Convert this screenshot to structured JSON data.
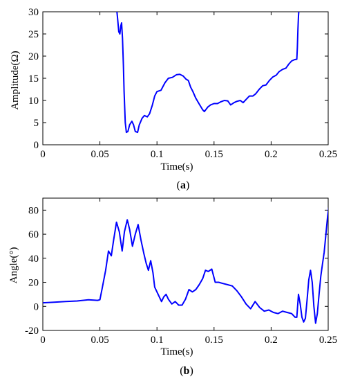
{
  "chart_data": [
    {
      "type": "line",
      "panel": "a",
      "caption_open": "(",
      "caption_letter": "a",
      "caption_close": ")",
      "xlabel": "Time(s)",
      "ylabel": "Amplitude(Ω)",
      "xlim": [
        0,
        0.25
      ],
      "ylim": [
        0,
        30
      ],
      "xticks": [
        0,
        0.05,
        0.1,
        0.15,
        0.2,
        0.25
      ],
      "xtick_labels": [
        "0",
        "0.05",
        "0.1",
        "0.15",
        "0.2",
        "0.25"
      ],
      "yticks": [
        0,
        5,
        10,
        15,
        20,
        25,
        30
      ],
      "ytick_labels": [
        "0",
        "5",
        "10",
        "15",
        "20",
        "25",
        "30"
      ],
      "grid": false,
      "color": "#0000ff",
      "series": [
        {
          "x": [
            0.0645,
            0.0655,
            0.0665,
            0.0675,
            0.0683,
            0.069,
            0.0698,
            0.0706,
            0.0712,
            0.0722,
            0.0732,
            0.0745,
            0.076,
            0.078,
            0.0795,
            0.081,
            0.083,
            0.0845,
            0.087,
            0.089,
            0.0915,
            0.0935,
            0.096,
            0.098,
            0.1,
            0.1035,
            0.107,
            0.11,
            0.1135,
            0.117,
            0.12,
            0.123,
            0.1255,
            0.1275,
            0.1295,
            0.1315,
            0.134,
            0.137,
            0.14,
            0.1415,
            0.1445,
            0.147,
            0.15,
            0.153,
            0.156,
            0.159,
            0.162,
            0.1645,
            0.1675,
            0.17,
            0.173,
            0.1755,
            0.178,
            0.181,
            0.184,
            0.1865,
            0.1895,
            0.1925,
            0.1955,
            0.1985,
            0.2015,
            0.2045,
            0.207,
            0.21,
            0.213,
            0.2155,
            0.218,
            0.2205,
            0.2225,
            0.223,
            0.2235,
            0.224,
            0.2245
          ],
          "y": [
            31,
            28.5,
            25.5,
            25,
            26.8,
            27.5,
            24,
            18,
            12,
            5,
            2.8,
            3,
            4.5,
            5.3,
            4.5,
            3,
            2.8,
            4.5,
            6,
            6.6,
            6.3,
            7,
            9,
            11,
            12,
            12.3,
            14,
            15,
            15.2,
            15.8,
            15.9,
            15.5,
            14.8,
            14.5,
            13,
            12,
            10.5,
            9.2,
            7.9,
            7.5,
            8.5,
            9,
            9.3,
            9.3,
            9.7,
            10,
            9.9,
            9,
            9.5,
            9.8,
            10,
            9.5,
            10.2,
            11,
            11,
            11.5,
            12.5,
            13.3,
            13.5,
            14.5,
            15.3,
            15.7,
            16.5,
            17,
            17.3,
            18.2,
            18.9,
            19.2,
            19.3,
            22,
            26,
            29,
            31
          ]
        }
      ]
    },
    {
      "type": "line",
      "panel": "b",
      "caption_open": "(",
      "caption_letter": "b",
      "caption_close": ")",
      "xlabel": "Time(s)",
      "ylabel": "Angle(°)",
      "xlim": [
        0,
        0.25
      ],
      "ylim": [
        -20,
        90
      ],
      "xticks": [
        0,
        0.05,
        0.1,
        0.15,
        0.2,
        0.25
      ],
      "xtick_labels": [
        "0",
        "0.05",
        "0.1",
        "0.15",
        "0.2",
        "0.25"
      ],
      "yticks": [
        -20,
        0,
        20,
        40,
        60,
        80
      ],
      "ytick_labels": [
        "-20",
        "0",
        "20",
        "40",
        "60",
        "80"
      ],
      "grid": false,
      "color": "#0000ff",
      "series": [
        {
          "x": [
            0,
            0.01,
            0.02,
            0.03,
            0.04,
            0.048,
            0.05,
            0.052,
            0.055,
            0.0575,
            0.06,
            0.062,
            0.0645,
            0.067,
            0.0695,
            0.0715,
            0.074,
            0.076,
            0.0785,
            0.081,
            0.0835,
            0.086,
            0.0885,
            0.0905,
            0.0925,
            0.0945,
            0.0965,
            0.098,
            0.1,
            0.102,
            0.104,
            0.106,
            0.108,
            0.11,
            0.113,
            0.116,
            0.119,
            0.122,
            0.125,
            0.128,
            0.131,
            0.134,
            0.137,
            0.14,
            0.1425,
            0.145,
            0.148,
            0.151,
            0.154,
            0.158,
            0.162,
            0.166,
            0.17,
            0.174,
            0.178,
            0.182,
            0.186,
            0.19,
            0.194,
            0.198,
            0.202,
            0.206,
            0.21,
            0.214,
            0.218,
            0.221,
            0.2225,
            0.224,
            0.2255,
            0.227,
            0.2285,
            0.23,
            0.2315,
            0.233,
            0.2345,
            0.236,
            0.2375,
            0.239,
            0.2405,
            0.242,
            0.2435,
            0.245,
            0.2465,
            0.248,
            0.2495,
            0.2505,
            0.2515,
            0.2525
          ],
          "y": [
            3,
            3.5,
            4,
            4.5,
            5.5,
            5,
            5.5,
            15,
            30,
            46,
            42,
            55,
            70,
            62,
            46,
            62,
            72,
            64,
            50,
            60,
            68,
            55,
            44,
            36,
            30,
            38,
            28,
            16,
            12,
            8,
            4,
            8,
            10,
            6,
            2,
            4,
            1,
            1,
            6,
            14,
            12,
            14,
            18,
            23,
            30,
            29,
            31,
            20,
            20,
            19,
            18,
            17,
            13,
            8,
            2,
            -2,
            4,
            -1,
            -4,
            -3,
            -5,
            -6,
            -4,
            -5,
            -6,
            -9,
            -9,
            10,
            2,
            -9,
            -13,
            -10,
            5,
            22,
            30,
            20,
            0,
            -14,
            -6,
            10,
            25,
            35,
            45,
            60,
            75,
            82,
            88,
            92
          ]
        }
      ]
    }
  ]
}
